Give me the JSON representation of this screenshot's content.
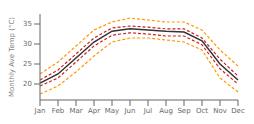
{
  "chart_data": {
    "type": "line",
    "ylabel": "Monthly Ave Temp (°C)",
    "categories": [
      "Jan",
      "Feb",
      "Mar",
      "Apr",
      "May",
      "Jun",
      "Jul",
      "Aug",
      "Sep",
      "Oct",
      "Nov",
      "Dec"
    ],
    "series": [
      {
        "color": "#ff9900",
        "line_style": "dashed",
        "values": [
          17.5,
          19.5,
          23.0,
          27.0,
          30.5,
          31.5,
          31.5,
          31.0,
          30.5,
          28.5,
          21.5,
          18.0
        ]
      },
      {
        "color": "#ff9900",
        "line_style": "dashed",
        "values": [
          22.5,
          25.5,
          29.5,
          33.5,
          35.5,
          36.5,
          36.0,
          35.5,
          35.5,
          33.5,
          28.5,
          24.5
        ]
      },
      {
        "color": "#cc2222",
        "line_style": "dashed",
        "values": [
          19.5,
          21.5,
          25.5,
          29.5,
          32.2,
          32.8,
          32.5,
          32.0,
          32.0,
          29.8,
          23.8,
          20.0
        ]
      },
      {
        "color": "#cc2222",
        "line_style": "dashed",
        "values": [
          21.0,
          23.5,
          27.5,
          31.5,
          34.0,
          34.5,
          34.2,
          33.8,
          33.8,
          31.5,
          26.2,
          22.0
        ]
      },
      {
        "color": "#333333",
        "line_style": "solid",
        "values": [
          20.2,
          22.5,
          26.5,
          30.5,
          33.2,
          33.8,
          33.5,
          33.2,
          33.0,
          30.8,
          25.0,
          21.0
        ]
      }
    ],
    "ylim": [
      16,
      37.5
    ],
    "yticks": [
      20,
      25,
      30,
      35
    ],
    "grid": false
  }
}
